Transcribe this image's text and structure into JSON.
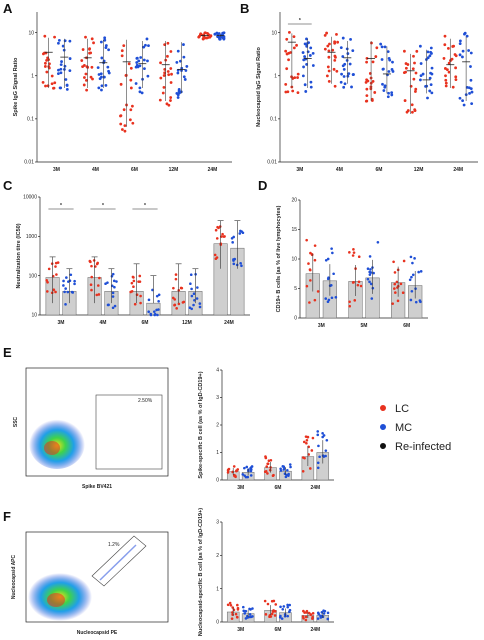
{
  "legend": [
    {
      "label": "LC",
      "color": "#e8321f"
    },
    {
      "label": "MC",
      "color": "#1f4fd6"
    },
    {
      "label": "Re-infected",
      "color": "#111111"
    }
  ],
  "panels": {
    "A": {
      "letter": "A"
    },
    "B": {
      "letter": "B"
    },
    "C": {
      "letter": "C"
    },
    "D": {
      "letter": "D"
    },
    "E": {
      "letter": "E"
    },
    "F": {
      "letter": "F"
    }
  },
  "flow": {
    "E": {
      "gate_pct": "2.50%",
      "xlabel": "Spike BV421",
      "ylabel": "SSC"
    },
    "F": {
      "gate_pct": "1.2%",
      "xlabel": "Nucleocapsid PE",
      "ylabel": "Nucleocapsid APC"
    }
  },
  "chart_data": [
    {
      "id": "A",
      "type": "scatter",
      "scale": "log",
      "ylabel": "Spike IgG Signal Ratio",
      "yticks": [
        "0.01",
        "0.1",
        "1",
        "10"
      ],
      "ylim": [
        0.01,
        30
      ],
      "categories": [
        "3M",
        "4M",
        "6M",
        "12M",
        "24M"
      ],
      "series": [
        {
          "name": "LC",
          "color": "#e8321f",
          "medians": [
            3.5,
            2.6,
            2.1,
            1.8,
            8.5
          ],
          "ranges": [
            [
              0.4,
              9.5
            ],
            [
              0.4,
              9
            ],
            [
              0.05,
              8.5
            ],
            [
              0.2,
              8
            ],
            [
              7,
              10
            ]
          ]
        },
        {
          "name": "MC",
          "color": "#1f4fd6",
          "medians": [
            2.7,
            2.0,
            1.9,
            1.4,
            8.5
          ],
          "ranges": [
            [
              0.4,
              9
            ],
            [
              0.4,
              8.5
            ],
            [
              0.4,
              8
            ],
            [
              0.3,
              7.5
            ],
            [
              7,
              10
            ]
          ]
        }
      ],
      "annotations": []
    },
    {
      "id": "B",
      "type": "scatter",
      "scale": "log",
      "ylabel": "Nucleocapsid IgG Signal Ratio",
      "yticks": [
        "0.01",
        "0.1",
        "1",
        "10"
      ],
      "ylim": [
        0.01,
        30
      ],
      "categories": [
        "3M",
        "4M",
        "6M",
        "12M",
        "24M"
      ],
      "series": [
        {
          "name": "LC",
          "color": "#e8321f",
          "medians": [
            6,
            3.5,
            2.5,
            1.3,
            1.8
          ],
          "ranges": [
            [
              0.4,
              12
            ],
            [
              0.5,
              10
            ],
            [
              0.2,
              8
            ],
            [
              0.1,
              4
            ],
            [
              0.4,
              9
            ]
          ]
        },
        {
          "name": "MC",
          "color": "#1f4fd6",
          "medians": [
            2.5,
            2.6,
            1.1,
            0.8,
            2.1
          ],
          "ranges": [
            [
              0.4,
              9
            ],
            [
              0.5,
              8
            ],
            [
              0.3,
              6
            ],
            [
              0.3,
              5
            ],
            [
              0.2,
              10
            ]
          ]
        }
      ],
      "annotations": [
        "*"
      ]
    },
    {
      "id": "C",
      "type": "bar",
      "scale": "log",
      "ylabel": "Neutralization titre (IC50)",
      "yticks": [
        "10",
        "100",
        "1000",
        "10000"
      ],
      "ylim": [
        10,
        10000
      ],
      "categories": [
        "3M",
        "4M",
        "6M",
        "12M",
        "24M"
      ],
      "series": [
        {
          "name": "LC",
          "color": "#e8321f",
          "values": [
            90,
            90,
            40,
            40,
            650
          ],
          "err": [
            [
              20,
              300
            ],
            [
              20,
              300
            ],
            [
              20,
              200
            ],
            [
              20,
              200
            ],
            [
              150,
              2500
            ]
          ]
        },
        {
          "name": "MC",
          "color": "#1f4fd6",
          "values": [
            40,
            40,
            20,
            40,
            500
          ],
          "err": [
            [
              20,
              150
            ],
            [
              20,
              150
            ],
            [
              20,
              100
            ],
            [
              20,
              150
            ],
            [
              150,
              2500
            ]
          ]
        }
      ],
      "annotations": [
        "*",
        "*",
        "*"
      ]
    },
    {
      "id": "D",
      "type": "bar",
      "scale": "linear",
      "ylabel": "CD19+ B cells (as % of live lymphocytes)",
      "yticks": [
        "0",
        "5",
        "10",
        "15",
        "20"
      ],
      "ylim": [
        0,
        20
      ],
      "categories": [
        "3M",
        "5M",
        "6M"
      ],
      "series": [
        {
          "name": "LC",
          "color": "#e8321f",
          "values": [
            7.5,
            6.2,
            6.0
          ]
        },
        {
          "name": "MC",
          "color": "#1f4fd6",
          "values": [
            6.3,
            6.8,
            5.5
          ]
        }
      ]
    },
    {
      "id": "E",
      "type": "bar",
      "scale": "linear",
      "ylabel": "Spike-specific B cell (as % of IgD-CD19+)",
      "yticks": [
        "0",
        "1",
        "2",
        "3",
        "4"
      ],
      "ylim": [
        0,
        4
      ],
      "categories": [
        "3M",
        "6M",
        "24M"
      ],
      "series": [
        {
          "name": "LC",
          "color": "#e8321f",
          "values": [
            0.3,
            0.45,
            0.85
          ]
        },
        {
          "name": "MC",
          "color": "#1f4fd6",
          "values": [
            0.28,
            0.32,
            1.0
          ]
        }
      ]
    },
    {
      "id": "F",
      "type": "bar",
      "scale": "linear",
      "ylabel": "Nucleocapsid-specific B cell (as % of IgD-CD19+)",
      "yticks": [
        "0",
        "1",
        "2",
        "3"
      ],
      "ylim": [
        0,
        3
      ],
      "categories": [
        "3M",
        "6M",
        "24M"
      ],
      "series": [
        {
          "name": "LC",
          "color": "#e8321f",
          "values": [
            0.3,
            0.35,
            0.2
          ]
        },
        {
          "name": "MC",
          "color": "#1f4fd6",
          "values": [
            0.25,
            0.28,
            0.2
          ]
        }
      ]
    }
  ]
}
